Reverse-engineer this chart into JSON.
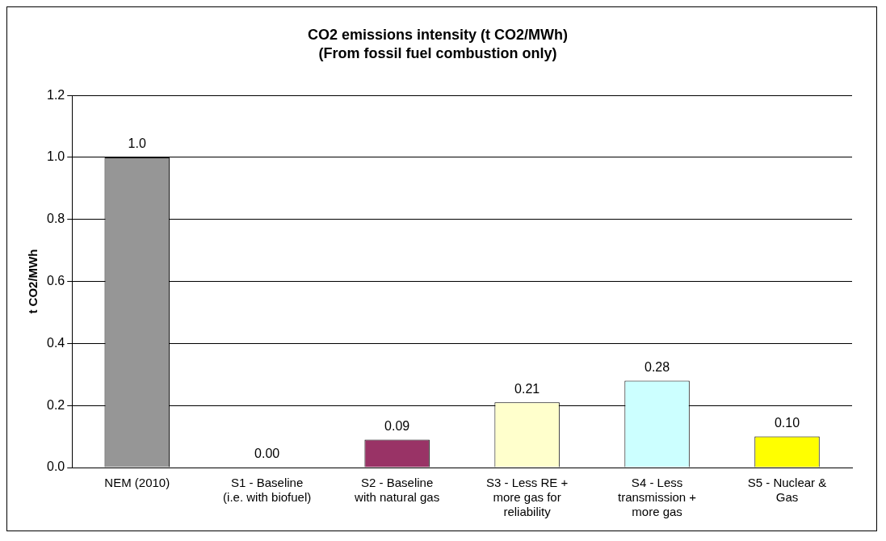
{
  "chart_data": {
    "type": "bar",
    "title": "CO2 emissions intensity (t CO2/MWh)",
    "subtitle": "(From fossil fuel combustion only)",
    "ylabel": "t CO2/MWh",
    "categories": [
      "NEM (2010)",
      "S1 - Baseline\n(i.e. with biofuel)",
      "S2 - Baseline\nwith natural gas",
      "S3 - Less RE +\nmore gas for\nreliability",
      "S4 - Less\ntransmission +\nmore gas",
      "S5 - Nuclear &\nGas"
    ],
    "values": [
      1.0,
      0.0,
      0.09,
      0.21,
      0.28,
      0.1
    ],
    "value_labels": [
      "1.0",
      "0.00",
      "0.09",
      "0.21",
      "0.28",
      "0.10"
    ],
    "colors": [
      "#969696",
      "#993366",
      "#993366",
      "#ffffcc",
      "#ccffff",
      "#ffff00"
    ],
    "ylim": [
      0,
      1.2
    ],
    "yticks": [
      {
        "value": 0,
        "label": "0.0"
      },
      {
        "value": 0.2,
        "label": "0.2"
      },
      {
        "value": 0.4,
        "label": "0.4"
      },
      {
        "value": 0.6,
        "label": "0.6"
      },
      {
        "value": 0.8,
        "label": "0.8"
      },
      {
        "value": 1.0,
        "label": "1.0"
      },
      {
        "value": 1.2,
        "label": "1.2"
      }
    ],
    "grid": "y",
    "legend": false
  }
}
